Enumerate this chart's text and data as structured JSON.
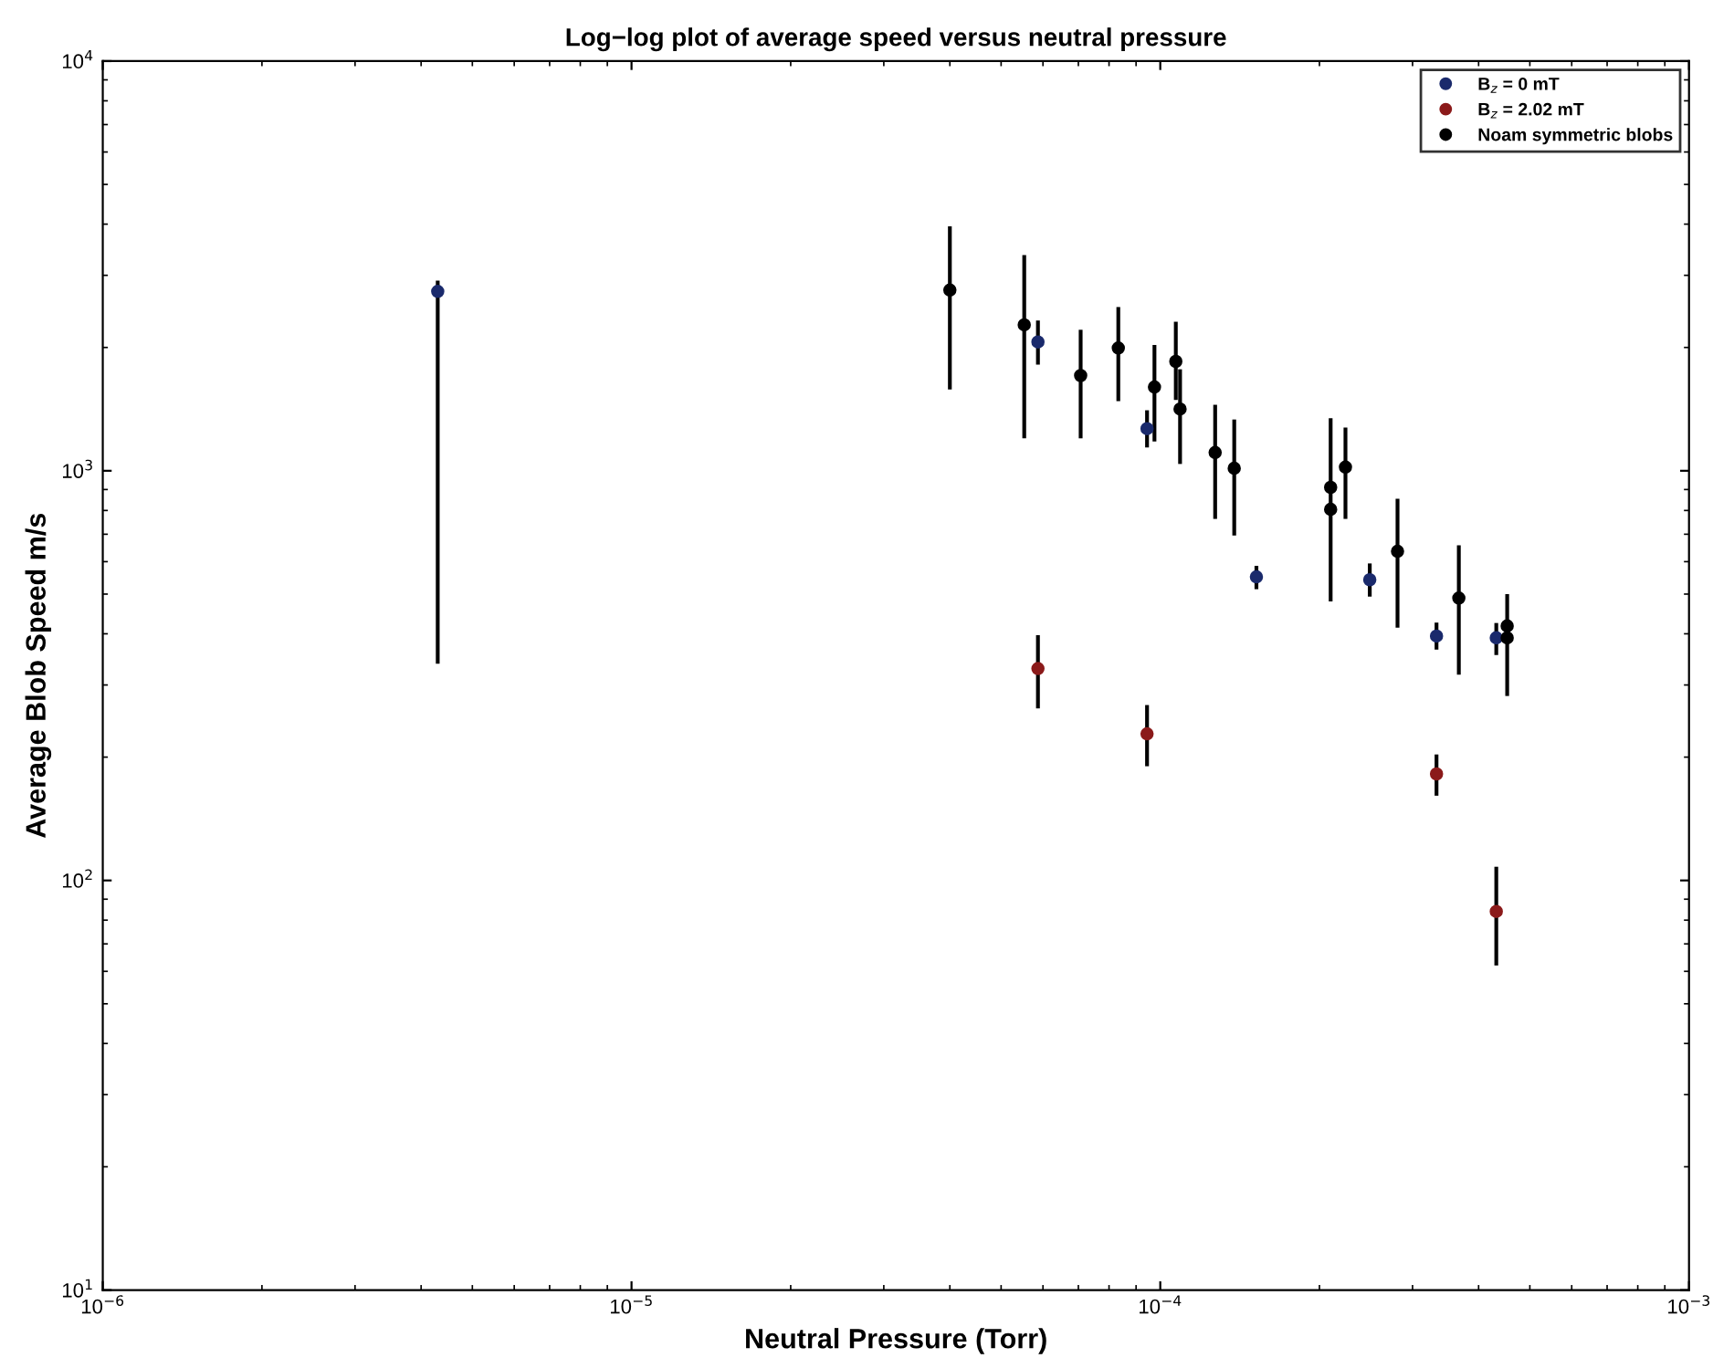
{
  "chart_data": {
    "type": "scatter",
    "title": "Log−log plot of average speed versus neutral pressure",
    "xlabel": "Neutral Pressure (Torr)",
    "ylabel": "Average Blob Speed m/s",
    "log": "xy",
    "xlim": [
      1e-06,
      0.001
    ],
    "ylim": [
      10,
      10000
    ],
    "xticks": [
      {
        "value": 1e-06,
        "label": "10$^{−6}$"
      },
      {
        "value": 1e-05,
        "label": "10$^{−5}$"
      },
      {
        "value": 0.0001,
        "label": "10$^{−4}$"
      },
      {
        "value": 0.001,
        "label": "10$^{−3}$"
      }
    ],
    "yticks": [
      {
        "value": 10,
        "label": "10$^{1}$"
      },
      {
        "value": 100,
        "label": "10$^{2}$"
      },
      {
        "value": 1000,
        "label": "10$^{3}$"
      },
      {
        "value": 10000,
        "label": "10$^{4}$"
      }
    ],
    "grid": false,
    "legend": "top right",
    "marker": "circle",
    "series": [
      {
        "name": "B$_{z}$ = 0 mT",
        "color": "#1a2a6c",
        "x": [
          4.3e-06,
          5.87e-05,
          9.44e-05,
          0.000152,
          0.000249,
          0.000333,
          0.000432
        ],
        "values": [
          2740,
          2063,
          1267,
          551,
          542,
          395,
          391
        ],
        "errors": [
          [
            338,
            2910
          ],
          [
            1816,
            2327
          ],
          [
            1140,
            1405
          ],
          [
            514,
            586
          ],
          [
            493,
            594
          ],
          [
            366,
            426
          ],
          [
            355,
            425
          ]
        ]
      },
      {
        "name": "B$_{z}$ = 2.02 mT",
        "color": "#8b1a1a",
        "x": [
          5.87e-05,
          9.44e-05,
          0.000333,
          0.000432
        ],
        "values": [
          329,
          228,
          182,
          84
        ],
        "errors": [
          [
            263,
            397
          ],
          [
            190,
            268
          ],
          [
            161,
            203
          ],
          [
            62,
            108
          ]
        ]
      },
      {
        "name": "Noam symmetric blobs",
        "color": "#000000",
        "x": [
          4e-05,
          5.53e-05,
          7.07e-05,
          8.33e-05,
          9.75e-05,
          0.000107,
          0.000109,
          0.000127,
          0.000138,
          0.00021,
          0.00021,
          0.000224,
          0.000281,
          0.000367,
          0.000453,
          0.000453
        ],
        "values": [
          2762,
          2271,
          1708,
          1994,
          1601,
          1849,
          1415,
          1108,
          1014,
          911,
          805,
          1021,
          636,
          489,
          418,
          391
        ],
        "errors": [
          [
            1579,
            3953
          ],
          [
            1200,
            3360
          ],
          [
            1200,
            2209
          ],
          [
            1479,
            2510
          ],
          [
            1179,
            2028
          ],
          [
            1489,
            2311
          ],
          [
            1039,
            1769
          ],
          [
            763,
            1449
          ],
          [
            695,
            1334
          ],
          null,
          [
            480,
            1343
          ],
          [
            763,
            1275
          ],
          [
            414,
            855
          ],
          [
            318,
            658
          ],
          [
            282,
            500
          ],
          null
        ]
      }
    ]
  }
}
